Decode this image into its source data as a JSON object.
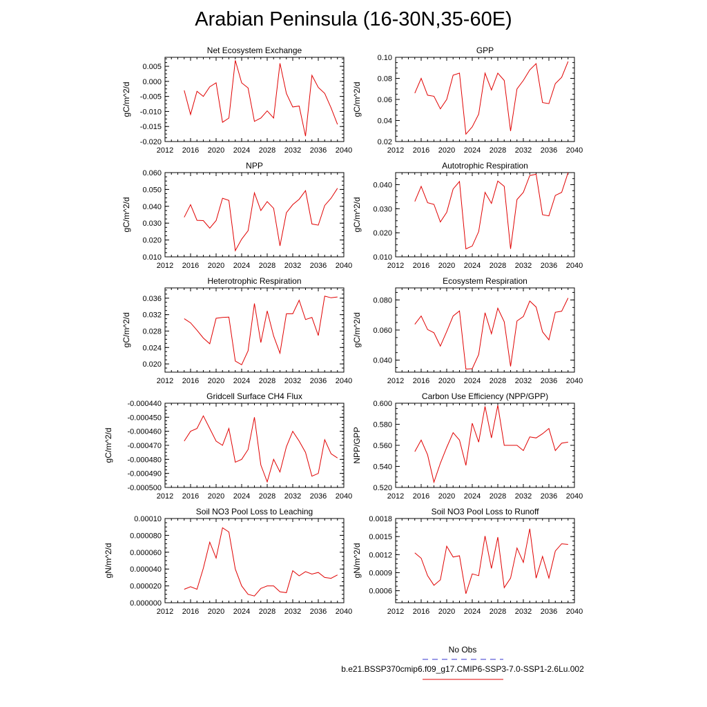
{
  "title": "Arabian Peninsula (16-30N,35-60E)",
  "legend": {
    "obs_label": "No Obs",
    "obs_color": "#3333cc",
    "model_label": "b.e21.BSSP370cmip6.f09_g17.CMIP6-SSP3-7.0-SSP1-2.6Lu.002",
    "model_color": "#e00000"
  },
  "chart_data": [
    {
      "type": "line",
      "title": "Net Ecosystem Exchange",
      "ylabel": "gC/m^2/d",
      "xlim": [
        2012,
        2040
      ],
      "xticks": [
        "2012",
        "2016",
        "2020",
        "2024",
        "2028",
        "2032",
        "2036",
        "2040"
      ],
      "ylim": [
        -0.02,
        0.008
      ],
      "yticks": [
        "-0.020",
        "-0.015",
        "-0.010",
        "-0.005",
        "0.000",
        "0.005"
      ],
      "x": [
        2015,
        2016,
        2017,
        2018,
        2019,
        2020,
        2021,
        2022,
        2023,
        2024,
        2025,
        2026,
        2027,
        2028,
        2029,
        2030,
        2031,
        2032,
        2033,
        2034,
        2035,
        2036,
        2037,
        2038,
        2039
      ],
      "values": [
        -0.003,
        -0.011,
        -0.0033,
        -0.005,
        -0.0018,
        -0.0005,
        -0.0136,
        -0.0122,
        0.007,
        -0.0005,
        -0.0022,
        -0.0133,
        -0.0122,
        -0.0098,
        -0.0122,
        0.006,
        -0.004,
        -0.0085,
        -0.0082,
        -0.0182,
        0.002,
        -0.002,
        -0.004,
        -0.0088,
        -0.0143
      ]
    },
    {
      "type": "line",
      "title": "GPP",
      "ylabel": "gC/m^2/d",
      "xlim": [
        2012,
        2040
      ],
      "xticks": [
        "2012",
        "2016",
        "2020",
        "2024",
        "2028",
        "2032",
        "2036",
        "2040"
      ],
      "ylim": [
        0.02,
        0.1
      ],
      "yticks": [
        "0.02",
        "0.04",
        "0.06",
        "0.08",
        "0.10"
      ],
      "x": [
        2015,
        2016,
        2017,
        2018,
        2019,
        2020,
        2021,
        2022,
        2023,
        2024,
        2025,
        2026,
        2027,
        2028,
        2029,
        2030,
        2031,
        2032,
        2033,
        2034,
        2035,
        2036,
        2037,
        2038,
        2039
      ],
      "values": [
        0.066,
        0.08,
        0.064,
        0.063,
        0.051,
        0.06,
        0.083,
        0.085,
        0.027,
        0.034,
        0.046,
        0.085,
        0.069,
        0.085,
        0.078,
        0.03,
        0.07,
        0.078,
        0.088,
        0.094,
        0.057,
        0.056,
        0.075,
        0.081,
        0.096
      ]
    },
    {
      "type": "line",
      "title": "NPP",
      "ylabel": "gC/m^2/d",
      "xlim": [
        2012,
        2040
      ],
      "xticks": [
        "2012",
        "2016",
        "2020",
        "2024",
        "2028",
        "2032",
        "2036",
        "2040"
      ],
      "ylim": [
        0.01,
        0.06
      ],
      "yticks": [
        "0.010",
        "0.020",
        "0.030",
        "0.040",
        "0.050",
        "0.060"
      ],
      "x": [
        2015,
        2016,
        2017,
        2018,
        2019,
        2020,
        2021,
        2022,
        2023,
        2024,
        2025,
        2026,
        2027,
        2028,
        2029,
        2030,
        2031,
        2032,
        2033,
        2034,
        2035,
        2036,
        2037,
        2038,
        2039
      ],
      "values": [
        0.0335,
        0.041,
        0.0317,
        0.0315,
        0.027,
        0.0315,
        0.0448,
        0.0435,
        0.0137,
        0.0205,
        0.0255,
        0.048,
        0.0375,
        0.0428,
        0.0388,
        0.0165,
        0.0362,
        0.041,
        0.0442,
        0.0493,
        0.0295,
        0.0288,
        0.0405,
        0.0448,
        0.0507
      ]
    },
    {
      "type": "line",
      "title": "Autotrophic Respiration",
      "ylabel": "gC/m^2/d",
      "xlim": [
        2012,
        2040
      ],
      "xticks": [
        "2012",
        "2016",
        "2020",
        "2024",
        "2028",
        "2032",
        "2036",
        "2040"
      ],
      "ylim": [
        0.01,
        0.045
      ],
      "yticks": [
        "0.010",
        "0.020",
        "0.030",
        "0.040"
      ],
      "x": [
        2015,
        2016,
        2017,
        2018,
        2019,
        2020,
        2021,
        2022,
        2023,
        2024,
        2025,
        2026,
        2027,
        2028,
        2029,
        2030,
        2031,
        2032,
        2033,
        2034,
        2035,
        2036,
        2037,
        2038,
        2039
      ],
      "values": [
        0.033,
        0.0393,
        0.0325,
        0.0318,
        0.0245,
        0.0285,
        0.0382,
        0.0413,
        0.0133,
        0.0145,
        0.0205,
        0.0368,
        0.0322,
        0.0415,
        0.0393,
        0.0133,
        0.0338,
        0.0368,
        0.0438,
        0.0443,
        0.0275,
        0.027,
        0.0355,
        0.0368,
        0.045
      ]
    },
    {
      "type": "line",
      "title": "Heterotrophic Respiration",
      "ylabel": "gC/m^2/d",
      "xlim": [
        2012,
        2040
      ],
      "xticks": [
        "2012",
        "2016",
        "2020",
        "2024",
        "2028",
        "2032",
        "2036",
        "2040"
      ],
      "ylim": [
        0.018,
        0.0385
      ],
      "yticks": [
        "0.020",
        "0.024",
        "0.028",
        "0.032",
        "0.036"
      ],
      "x": [
        2015,
        2016,
        2017,
        2018,
        2019,
        2020,
        2021,
        2022,
        2023,
        2024,
        2025,
        2026,
        2027,
        2028,
        2029,
        2030,
        2031,
        2032,
        2033,
        2034,
        2035,
        2036,
        2037,
        2038,
        2039
      ],
      "values": [
        0.031,
        0.03,
        0.0282,
        0.0263,
        0.0249,
        0.0311,
        0.0313,
        0.0314,
        0.0207,
        0.0198,
        0.0232,
        0.0347,
        0.0252,
        0.0329,
        0.0268,
        0.0226,
        0.0322,
        0.0322,
        0.0355,
        0.0308,
        0.0313,
        0.0269,
        0.0365,
        0.0361,
        0.0363
      ]
    },
    {
      "type": "line",
      "title": "Ecosystem Respiration",
      "ylabel": "gC/m^2/d",
      "xlim": [
        2012,
        2040
      ],
      "xticks": [
        "2012",
        "2016",
        "2020",
        "2024",
        "2028",
        "2032",
        "2036",
        "2040"
      ],
      "ylim": [
        0.032,
        0.088
      ],
      "yticks": [
        "0.040",
        "0.060",
        "0.080"
      ],
      "x": [
        2015,
        2016,
        2017,
        2018,
        2019,
        2020,
        2021,
        2022,
        2023,
        2024,
        2025,
        2026,
        2027,
        2028,
        2029,
        2030,
        2031,
        2032,
        2033,
        2034,
        2035,
        2036,
        2037,
        2038,
        2039
      ],
      "values": [
        0.0638,
        0.0693,
        0.0603,
        0.0582,
        0.0493,
        0.059,
        0.0693,
        0.0727,
        0.034,
        0.0343,
        0.0437,
        0.0715,
        0.0575,
        0.0745,
        0.0655,
        0.0358,
        0.066,
        0.069,
        0.0793,
        0.0753,
        0.0588,
        0.0535,
        0.0718,
        0.0725,
        0.0813
      ]
    },
    {
      "type": "line",
      "title": "Gridcell Surface CH4 Flux",
      "ylabel": "gC/m^2/d",
      "xlim": [
        2012,
        2040
      ],
      "xticks": [
        "2012",
        "2016",
        "2020",
        "2024",
        "2028",
        "2032",
        "2036",
        "2040"
      ],
      "ylim": [
        -0.0005,
        -0.00044
      ],
      "yticks": [
        "-0.000500",
        "-0.000490",
        "-0.000480",
        "-0.000470",
        "-0.000460",
        "-0.000450",
        "-0.000440"
      ],
      "x": [
        2015,
        2016,
        2017,
        2018,
        2019,
        2020,
        2021,
        2022,
        2023,
        2024,
        2025,
        2026,
        2027,
        2028,
        2029,
        2030,
        2031,
        2032,
        2033,
        2034,
        2035,
        2036,
        2037,
        2038,
        2039
      ],
      "values": [
        -0.000467,
        -0.00046,
        -0.000458,
        -0.000449,
        -0.000458,
        -0.000467,
        -0.00047,
        -0.000458,
        -0.000482,
        -0.00048,
        -0.000473,
        -0.00045,
        -0.000484,
        -0.000496,
        -0.00048,
        -0.000489,
        -0.000471,
        -0.00046,
        -0.000467,
        -0.000475,
        -0.000492,
        -0.00049,
        -0.000466,
        -0.000476,
        -0.000479
      ]
    },
    {
      "type": "line",
      "title": "Carbon Use Efficiency (NPP/GPP)",
      "ylabel": "NPP/GPP",
      "xlim": [
        2012,
        2040
      ],
      "xticks": [
        "2012",
        "2016",
        "2020",
        "2024",
        "2028",
        "2032",
        "2036",
        "2040"
      ],
      "ylim": [
        0.52,
        0.6
      ],
      "yticks": [
        "0.520",
        "0.540",
        "0.560",
        "0.580",
        "0.600"
      ],
      "x": [
        2015,
        2016,
        2017,
        2018,
        2019,
        2020,
        2021,
        2022,
        2023,
        2024,
        2025,
        2026,
        2027,
        2028,
        2029,
        2030,
        2031,
        2032,
        2033,
        2034,
        2035,
        2036,
        2037,
        2038,
        2039
      ],
      "values": [
        0.554,
        0.565,
        0.551,
        0.525,
        0.543,
        0.558,
        0.572,
        0.565,
        0.541,
        0.581,
        0.563,
        0.597,
        0.567,
        0.598,
        0.56,
        0.56,
        0.56,
        0.555,
        0.568,
        0.567,
        0.571,
        0.576,
        0.555,
        0.562,
        0.563
      ]
    },
    {
      "type": "line",
      "title": "Soil NO3 Pool Loss to Leaching",
      "ylabel": "gN/m^2/d",
      "xlim": [
        2012,
        2040
      ],
      "xticks": [
        "2012",
        "2016",
        "2020",
        "2024",
        "2028",
        "2032",
        "2036",
        "2040"
      ],
      "ylim": [
        0,
        0.0001
      ],
      "yticks": [
        "0.000000",
        "0.000020",
        "0.000040",
        "0.000060",
        "0.000080",
        "0.00010"
      ],
      "x": [
        2015,
        2016,
        2017,
        2018,
        2019,
        2020,
        2021,
        2022,
        2023,
        2024,
        2025,
        2026,
        2027,
        2028,
        2029,
        2030,
        2031,
        2032,
        2033,
        2034,
        2035,
        2036,
        2037,
        2038,
        2039
      ],
      "values": [
        1.6e-05,
        1.9e-05,
        1.6e-05,
        4.1e-05,
        7.2e-05,
        5.3e-05,
        8.9e-05,
        8.4e-05,
        4e-05,
        2e-05,
        1e-05,
        8e-06,
        1.7e-05,
        2e-05,
        2e-05,
        1.3e-05,
        1.2e-05,
        3.8e-05,
        3.2e-05,
        3.7e-05,
        3.4e-05,
        3.6e-05,
        3e-05,
        2.9e-05,
        3.3e-05
      ]
    },
    {
      "type": "line",
      "title": "Soil NO3 Pool Loss to Runoff",
      "ylabel": "gN/m^2/d",
      "xlim": [
        2012,
        2040
      ],
      "xticks": [
        "2012",
        "2016",
        "2020",
        "2024",
        "2028",
        "2032",
        "2036",
        "2040"
      ],
      "ylim": [
        0.0004,
        0.0018
      ],
      "yticks": [
        "0.0006",
        "0.0009",
        "0.0012",
        "0.0015",
        "0.0018"
      ],
      "x": [
        2015,
        2016,
        2017,
        2018,
        2019,
        2020,
        2021,
        2022,
        2023,
        2024,
        2025,
        2026,
        2027,
        2028,
        2029,
        2030,
        2031,
        2032,
        2033,
        2034,
        2035,
        2036,
        2037,
        2038,
        2039
      ],
      "values": [
        0.00123,
        0.00114,
        0.00085,
        0.00069,
        0.00078,
        0.00134,
        0.00116,
        0.00118,
        0.00055,
        0.00088,
        0.00085,
        0.00151,
        0.00097,
        0.00149,
        0.00065,
        0.00081,
        0.00131,
        0.00107,
        0.00163,
        0.00081,
        0.00117,
        0.00081,
        0.00126,
        0.00138,
        0.00137
      ]
    }
  ]
}
